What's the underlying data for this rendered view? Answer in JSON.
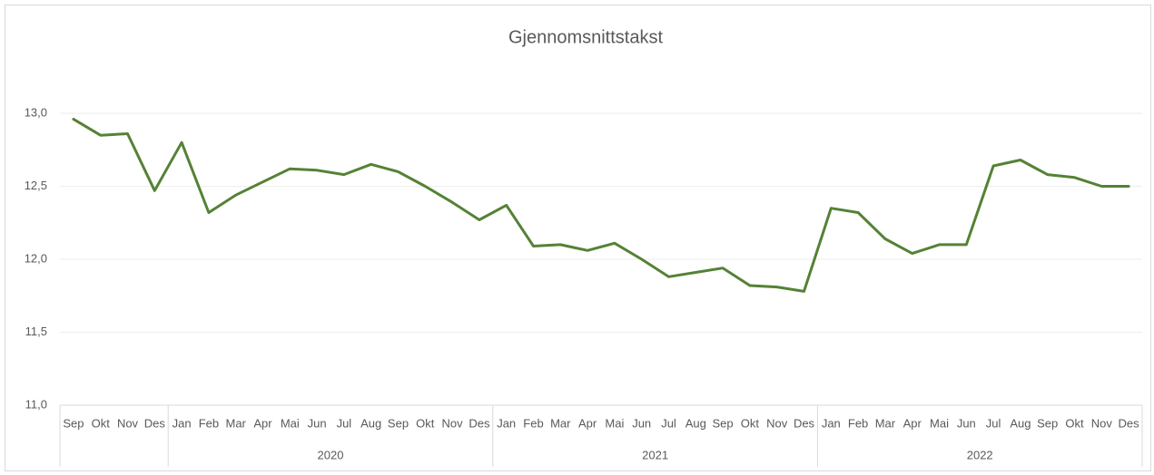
{
  "chart_data": {
    "type": "line",
    "title": "Gjennomsnittstakst",
    "category_groups": [
      {
        "label": null,
        "categories": [
          "Sep",
          "Okt",
          "Nov",
          "Des"
        ]
      },
      {
        "label": "2020",
        "categories": [
          "Jan",
          "Feb",
          "Mar",
          "Apr",
          "Mai",
          "Jun",
          "Jul",
          "Aug",
          "Sep",
          "Okt",
          "Nov",
          "Des"
        ]
      },
      {
        "label": "2021",
        "categories": [
          "Jan",
          "Feb",
          "Mar",
          "Apr",
          "Mai",
          "Jun",
          "Jul",
          "Aug",
          "Sep",
          "Okt",
          "Nov",
          "Des"
        ]
      },
      {
        "label": "2022",
        "categories": [
          "Jan",
          "Feb",
          "Mar",
          "Apr",
          "Mai",
          "Jun",
          "Jul",
          "Aug",
          "Sep",
          "Okt",
          "Nov",
          "Des"
        ]
      }
    ],
    "values": [
      12.96,
      12.85,
      12.86,
      12.47,
      12.8,
      12.32,
      12.44,
      12.53,
      12.62,
      12.61,
      12.58,
      12.65,
      12.6,
      12.5,
      12.39,
      12.27,
      12.37,
      12.09,
      12.1,
      12.06,
      12.11,
      12.0,
      11.88,
      11.91,
      11.94,
      11.82,
      11.81,
      11.78,
      12.35,
      12.32,
      12.14,
      12.04,
      12.1,
      12.1,
      12.64,
      12.68,
      12.58,
      12.56,
      12.5,
      12.5
    ],
    "color": "#548235",
    "ylim": [
      11,
      13
    ],
    "yticks": [
      {
        "value": 11,
        "label": "11,0"
      },
      {
        "value": 11.5,
        "label": "11,5"
      },
      {
        "value": 12,
        "label": "12,0"
      },
      {
        "value": 12.5,
        "label": "12,5"
      },
      {
        "value": 13,
        "label": "13,0"
      }
    ],
    "grid": true
  }
}
